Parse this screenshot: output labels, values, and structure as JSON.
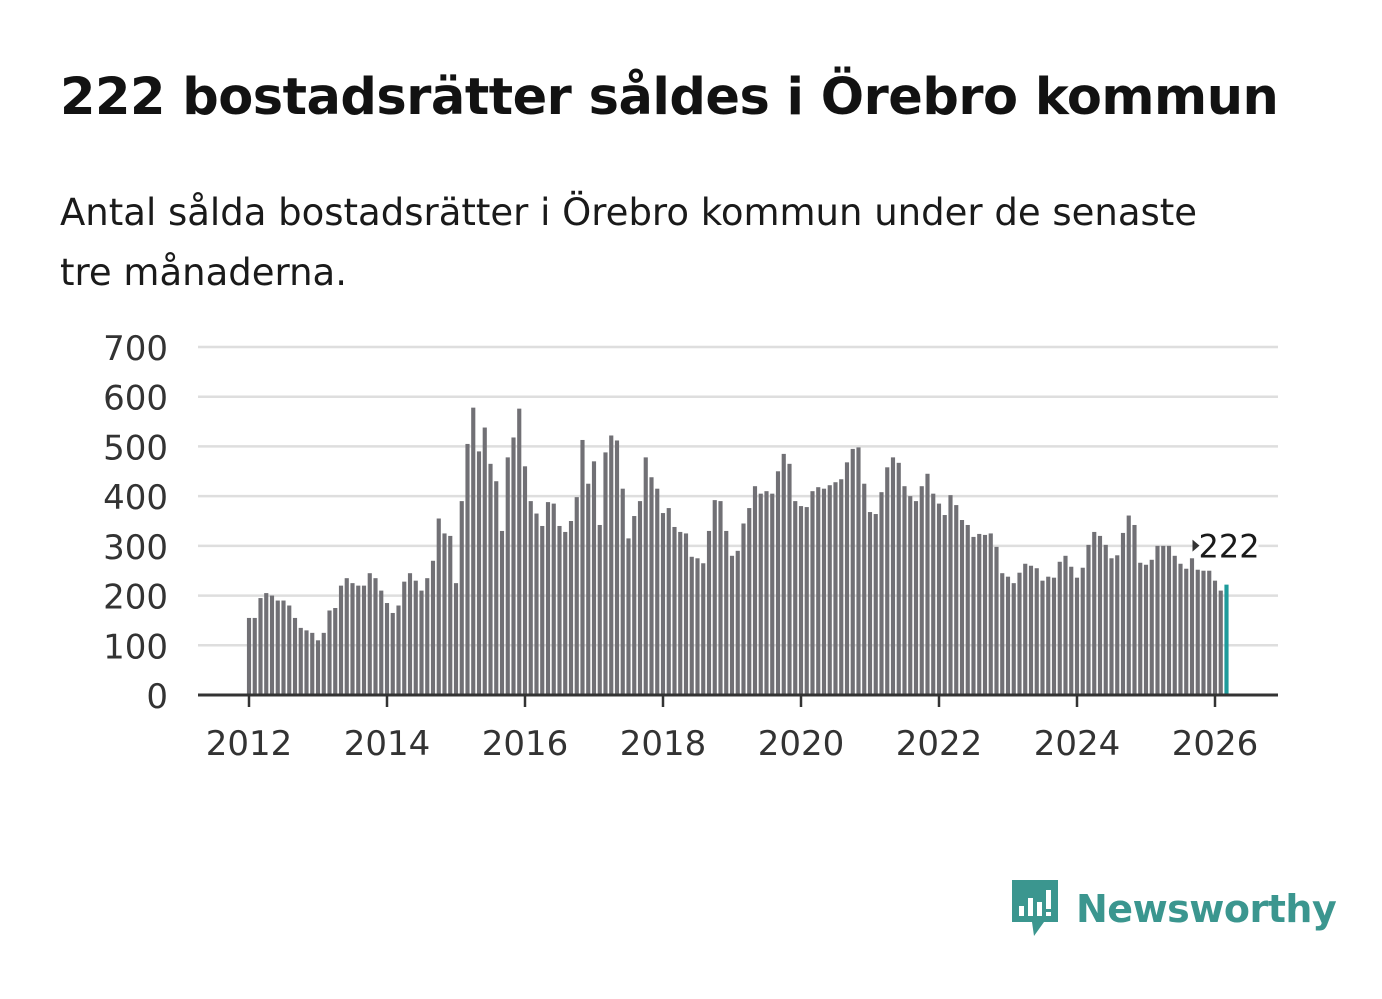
{
  "title": "222 bostadsrätter såldes i Örebro kommun",
  "subtitle": "Antal sålda bostadsrätter i Örebro kommun under de senaste tre månaderna.",
  "brand": {
    "name": "Newsworthy",
    "color": "#3b968f",
    "icon": "newsworthy-logo-icon"
  },
  "colors": {
    "bar": "#717075",
    "highlight": "#1e9b9b",
    "grid": "#dedede",
    "axis": "#333333"
  },
  "chart_data": {
    "type": "bar",
    "title": "222 bostadsrätter såldes i Örebro kommun",
    "xlabel": "",
    "ylabel": "",
    "ylim": [
      0,
      700
    ],
    "yticks": [
      0,
      100,
      200,
      300,
      400,
      500,
      600,
      700
    ],
    "xticks": [
      "2012",
      "2014",
      "2016",
      "2018",
      "2020",
      "2022",
      "2024",
      "2026"
    ],
    "x_start": "2012-01",
    "grid": true,
    "highlight_label": "222",
    "values": [
      155,
      155,
      195,
      205,
      200,
      190,
      190,
      180,
      155,
      135,
      130,
      125,
      110,
      125,
      170,
      175,
      220,
      235,
      225,
      220,
      220,
      245,
      235,
      210,
      185,
      165,
      180,
      228,
      245,
      230,
      210,
      235,
      270,
      355,
      325,
      320,
      225,
      390,
      505,
      578,
      490,
      538,
      465,
      430,
      330,
      478,
      518,
      576,
      460,
      390,
      365,
      340,
      388,
      385,
      340,
      328,
      350,
      398,
      513,
      425,
      470,
      342,
      488,
      522,
      512,
      415,
      315,
      360,
      390,
      478,
      438,
      415,
      366,
      376,
      338,
      328,
      325,
      278,
      275,
      265,
      330,
      392,
      390,
      330,
      280,
      290,
      345,
      376,
      420,
      405,
      410,
      405,
      450,
      485,
      465,
      390,
      380,
      378,
      410,
      418,
      415,
      422,
      428,
      434,
      468,
      495,
      498,
      425,
      368,
      364,
      408,
      458,
      478,
      467,
      420,
      400,
      390,
      420,
      445,
      405,
      385,
      362,
      402,
      382,
      352,
      342,
      318,
      324,
      322,
      325,
      298,
      245,
      238,
      225,
      246,
      264,
      260,
      255,
      230,
      238,
      236,
      268,
      280,
      258,
      236,
      256,
      302,
      328,
      320,
      302,
      275,
      281,
      326,
      361,
      342,
      266,
      262,
      272,
      300,
      300,
      300,
      280,
      264,
      254,
      275,
      252,
      250,
      250,
      230,
      210,
      222
    ]
  }
}
